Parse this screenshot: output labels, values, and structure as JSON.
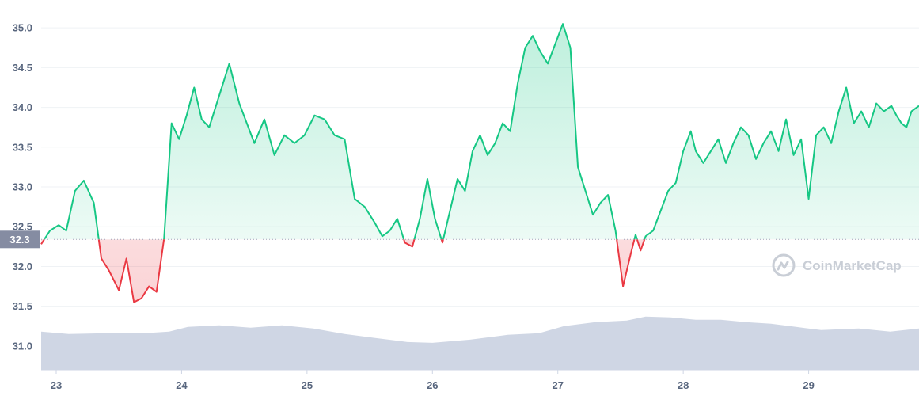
{
  "chart_data": {
    "type": "area",
    "xlabel": "",
    "ylabel": "",
    "x_ticks": [
      "23",
      "24",
      "25",
      "26",
      "27",
      "28",
      "29"
    ],
    "x_range": [
      22.88,
      29.88
    ],
    "ylim": [
      30.7,
      35.35
    ],
    "y_ticks": [
      31.0,
      31.5,
      32.0,
      32.5,
      33.0,
      33.5,
      34.0,
      34.5,
      35.0
    ],
    "y_tick_labels": [
      "31.0",
      "31.5",
      "32.0",
      "32.5",
      "33.0",
      "33.5",
      "34.0",
      "34.5",
      "35.0"
    ],
    "reference_value": 32.34,
    "reference_label": "32.3",
    "colors": {
      "above": "#16c784",
      "below": "#ea3943",
      "volume": "#cfd6e4",
      "grid": "#eff2f5",
      "ref_box": "#858ca2"
    },
    "price": {
      "x": [
        22.88,
        22.95,
        23.02,
        23.08,
        23.15,
        23.22,
        23.3,
        23.36,
        23.42,
        23.5,
        23.56,
        23.62,
        23.68,
        23.74,
        23.8,
        23.86,
        23.92,
        23.98,
        24.04,
        24.1,
        24.16,
        24.22,
        24.3,
        24.38,
        24.46,
        24.52,
        24.58,
        24.66,
        24.74,
        24.82,
        24.9,
        24.98,
        25.06,
        25.14,
        25.22,
        25.3,
        25.38,
        25.46,
        25.54,
        25.6,
        25.66,
        25.72,
        25.78,
        25.84,
        25.9,
        25.96,
        26.02,
        26.08,
        26.14,
        26.2,
        26.26,
        26.32,
        26.38,
        26.44,
        26.5,
        26.56,
        26.62,
        26.68,
        26.74,
        26.8,
        26.86,
        26.92,
        26.98,
        27.04,
        27.1,
        27.16,
        27.22,
        27.28,
        27.34,
        27.4,
        27.46,
        27.52,
        27.58,
        27.62,
        27.66,
        27.7,
        27.76,
        27.82,
        27.88,
        27.94,
        28.0,
        28.06,
        28.1,
        28.16,
        28.22,
        28.28,
        28.34,
        28.4,
        28.46,
        28.52,
        28.58,
        28.64,
        28.7,
        28.76,
        28.82,
        28.88,
        28.94,
        29.0,
        29.06,
        29.12,
        29.18,
        29.24,
        29.3,
        29.36,
        29.42,
        29.48,
        29.54,
        29.6,
        29.66,
        29.7,
        29.74,
        29.78,
        29.82,
        29.88
      ],
      "y": [
        32.28,
        32.45,
        32.52,
        32.45,
        32.95,
        33.08,
        32.8,
        32.1,
        31.95,
        31.7,
        32.1,
        31.55,
        31.6,
        31.75,
        31.68,
        32.35,
        33.8,
        33.6,
        33.9,
        34.25,
        33.85,
        33.75,
        34.15,
        34.55,
        34.05,
        33.8,
        33.55,
        33.85,
        33.4,
        33.65,
        33.55,
        33.65,
        33.9,
        33.85,
        33.65,
        33.6,
        32.85,
        32.75,
        32.55,
        32.38,
        32.45,
        32.6,
        32.3,
        32.25,
        32.6,
        33.1,
        32.6,
        32.3,
        32.7,
        33.1,
        32.95,
        33.45,
        33.65,
        33.4,
        33.55,
        33.8,
        33.7,
        34.3,
        34.75,
        34.9,
        34.7,
        34.55,
        34.8,
        35.05,
        34.75,
        33.25,
        32.95,
        32.65,
        32.8,
        32.9,
        32.45,
        31.75,
        32.15,
        32.4,
        32.2,
        32.38,
        32.45,
        32.7,
        32.95,
        33.05,
        33.45,
        33.7,
        33.45,
        33.3,
        33.45,
        33.6,
        33.3,
        33.55,
        33.75,
        33.65,
        33.35,
        33.55,
        33.7,
        33.45,
        33.85,
        33.4,
        33.6,
        32.85,
        33.65,
        33.75,
        33.55,
        33.95,
        34.25,
        33.8,
        33.95,
        33.75,
        34.05,
        33.95,
        34.02,
        33.9,
        33.8,
        33.75,
        33.95,
        34.02
      ]
    },
    "volume": {
      "x": [
        22.88,
        23.1,
        23.4,
        23.7,
        23.9,
        24.05,
        24.3,
        24.55,
        24.8,
        25.05,
        25.3,
        25.55,
        25.8,
        26.0,
        26.3,
        26.6,
        26.85,
        27.05,
        27.3,
        27.55,
        27.7,
        27.9,
        28.1,
        28.3,
        28.5,
        28.7,
        28.9,
        29.1,
        29.4,
        29.65,
        29.88
      ],
      "y": [
        31.18,
        31.15,
        31.16,
        31.16,
        31.18,
        31.24,
        31.26,
        31.23,
        31.26,
        31.22,
        31.15,
        31.1,
        31.05,
        31.04,
        31.08,
        31.14,
        31.16,
        31.25,
        31.3,
        31.32,
        31.37,
        31.36,
        31.33,
        31.33,
        31.3,
        31.28,
        31.24,
        31.2,
        31.22,
        31.18,
        31.22
      ]
    }
  },
  "watermark": {
    "text": "CoinMarketCap"
  }
}
